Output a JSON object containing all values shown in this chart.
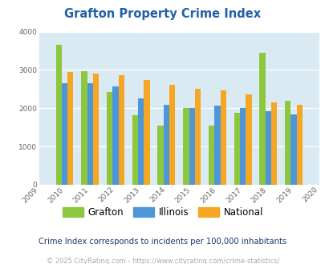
{
  "title": "Grafton Property Crime Index",
  "years": [
    2009,
    2010,
    2011,
    2012,
    2013,
    2014,
    2015,
    2016,
    2017,
    2018,
    2019,
    2020
  ],
  "grafton": [
    null,
    3650,
    2970,
    2420,
    1820,
    1540,
    2000,
    1540,
    1880,
    3440,
    2200,
    null
  ],
  "illinois": [
    null,
    2660,
    2660,
    2570,
    2260,
    2090,
    2000,
    2070,
    2010,
    1930,
    1840,
    null
  ],
  "national": [
    null,
    2940,
    2900,
    2860,
    2730,
    2610,
    2510,
    2460,
    2370,
    2160,
    2090,
    null
  ],
  "grafton_color": "#8dc63f",
  "illinois_color": "#4d96d9",
  "national_color": "#f5a623",
  "bg_color": "#daeaf3",
  "ylim": [
    0,
    4000
  ],
  "yticks": [
    0,
    1000,
    2000,
    3000,
    4000
  ],
  "bar_width": 0.23,
  "subtitle": "Crime Index corresponds to incidents per 100,000 inhabitants",
  "footer": "© 2025 CityRating.com - https://www.cityrating.com/crime-statistics/",
  "legend_labels": [
    "Grafton",
    "Illinois",
    "National"
  ],
  "title_color": "#2060a8",
  "subtitle_color": "#1a3a6a",
  "footer_color": "#aaaaaa"
}
